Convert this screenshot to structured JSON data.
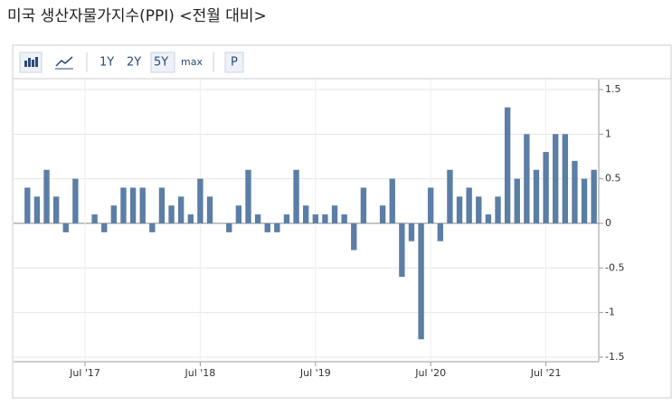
{
  "chart_data": {
    "type": "bar",
    "title": "미국 생산자물가지수(PPI) <전월 대비>",
    "toolbar": [
      "1Y",
      "2Y",
      "5Y",
      "max",
      "P"
    ],
    "categories": [
      null,
      null,
      null,
      null,
      null,
      null,
      "Jul '17",
      null,
      null,
      null,
      null,
      null,
      null,
      null,
      null,
      null,
      null,
      null,
      "Jul '18",
      null,
      null,
      null,
      null,
      null,
      null,
      null,
      null,
      null,
      null,
      null,
      "Jul '19",
      null,
      null,
      null,
      null,
      null,
      null,
      null,
      null,
      null,
      null,
      null,
      "Jul '20",
      null,
      null,
      null,
      null,
      null,
      null,
      null,
      null,
      null,
      null,
      null,
      "Jul '21",
      null,
      null,
      null,
      null,
      null
    ],
    "values": [
      0.4,
      0.3,
      0.6,
      0.3,
      -0.1,
      0.5,
      0,
      0.1,
      -0.1,
      0.2,
      0.4,
      0.4,
      0.4,
      -0.1,
      0.4,
      0.2,
      0.3,
      0.1,
      0.5,
      0.3,
      0,
      -0.1,
      0.2,
      0.6,
      0.1,
      -0.1,
      -0.1,
      0.1,
      0.6,
      0.2,
      0.1,
      0.1,
      0.2,
      0.1,
      -0.3,
      0.4,
      0,
      0.2,
      0.5,
      -0.6,
      -0.2,
      -1.3,
      0.4,
      -0.2,
      0.6,
      0.3,
      0.4,
      0.3,
      0.1,
      0.3,
      1.3,
      0.5,
      1.0,
      0.6,
      0.8,
      1.0,
      1.0,
      0.7,
      0.5,
      0.6
    ],
    "color": "#5b7ea6",
    "ylim": [
      -1.5,
      1.5
    ],
    "yticks": [
      1.5,
      1,
      0.5,
      0,
      -0.5,
      -1,
      -1.5
    ],
    "grid": true
  }
}
